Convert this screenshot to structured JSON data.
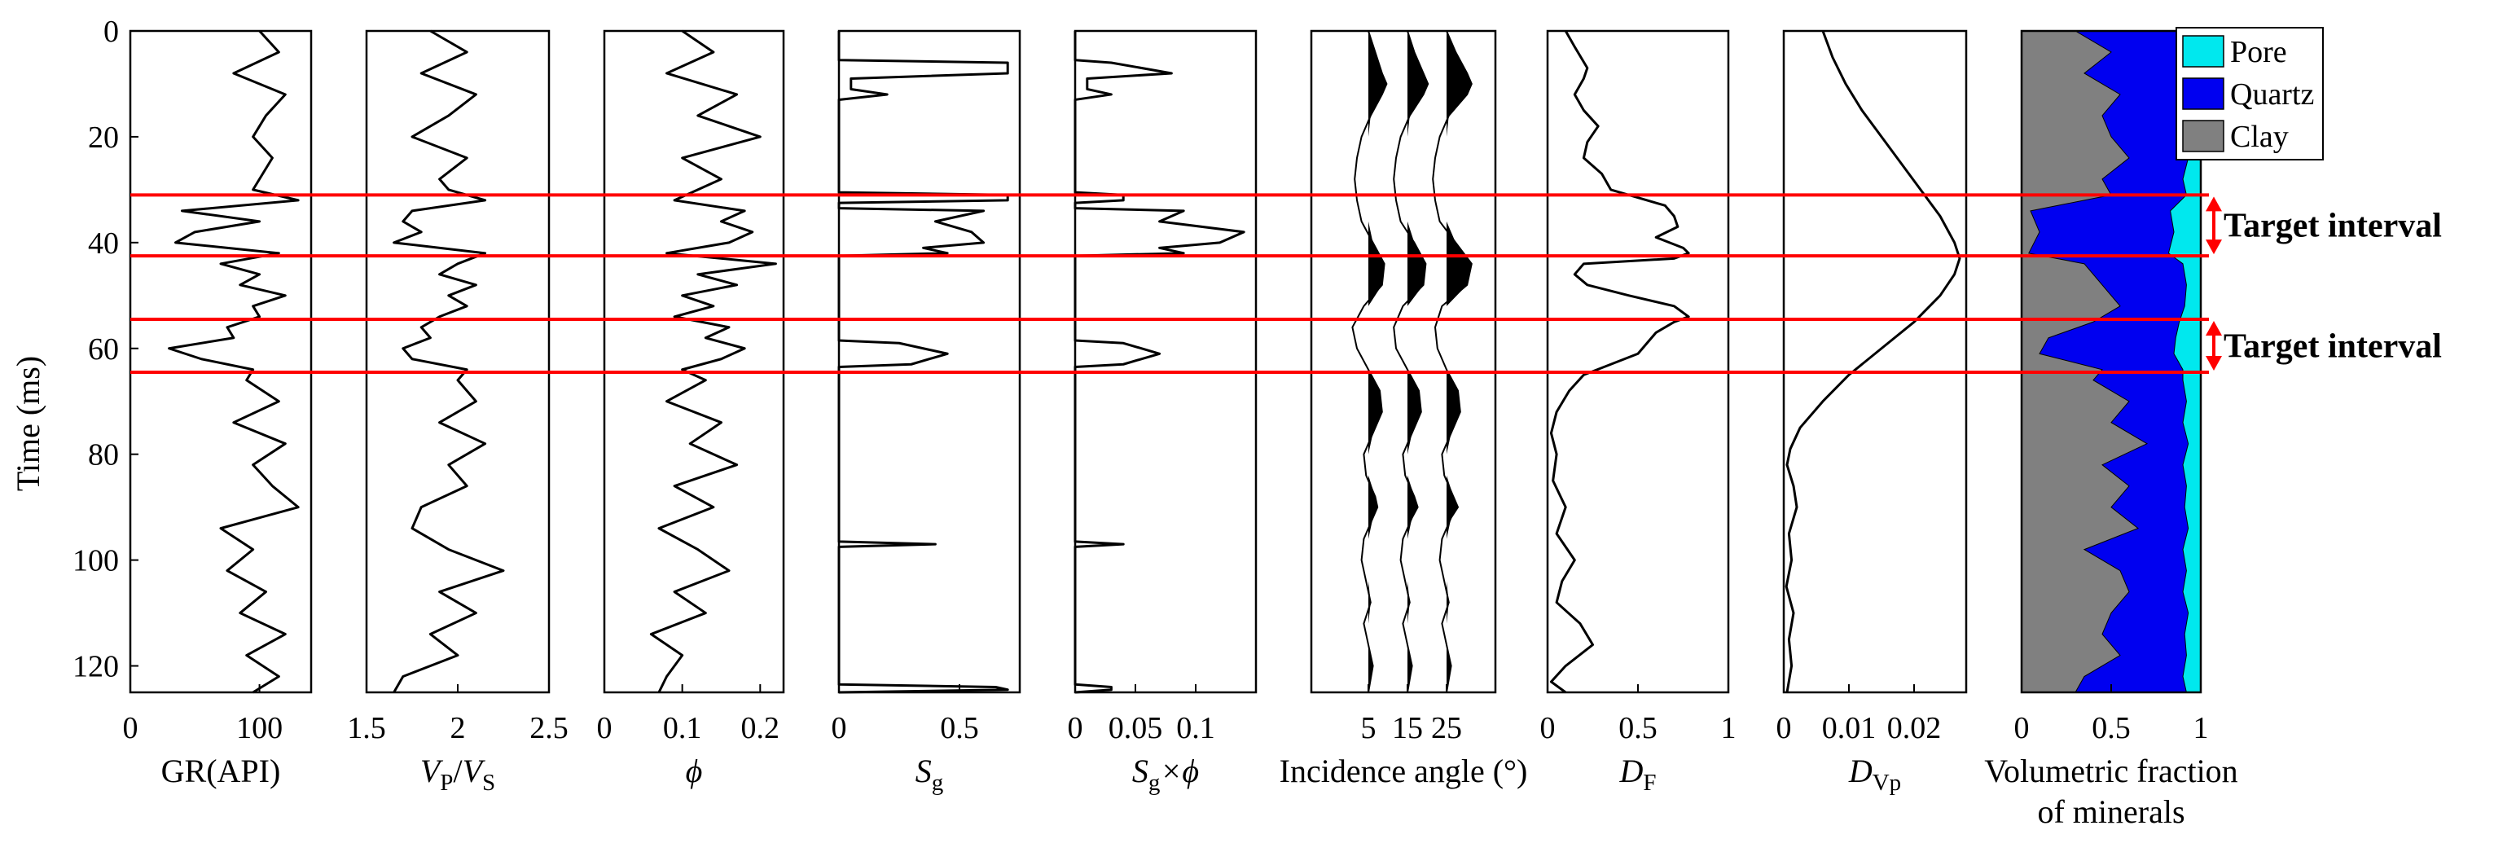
{
  "figure": {
    "y_axis": {
      "label": "Time (ms)",
      "range": [
        0,
        125
      ],
      "ticks": [
        0,
        20,
        40,
        60,
        80,
        100,
        120
      ],
      "reversed": true
    },
    "horizons_ms": [
      31,
      42.5,
      54.5,
      64.5
    ],
    "horizon_color": "#ff0000",
    "target_intervals": [
      {
        "label": "Target interval",
        "top_ms": 31,
        "base_ms": 42.5
      },
      {
        "label": "Target interval",
        "top_ms": 54.5,
        "base_ms": 64.5
      }
    ],
    "legend": [
      {
        "label": "Pore",
        "color": "#00e8ee"
      },
      {
        "label": "Quartz",
        "color": "#0000f0"
      },
      {
        "label": "Clay",
        "color": "#808080"
      }
    ]
  },
  "chart_data": [
    {
      "type": "line",
      "id": "gr",
      "xlabel": {
        "text": "GR(API)"
      },
      "xlim": [
        0,
        140
      ],
      "xticks": [
        "0",
        "100"
      ],
      "xtick_values": [
        0,
        100
      ],
      "y": [
        0,
        4,
        8,
        12,
        16,
        20,
        24,
        28,
        30,
        32,
        34,
        36,
        38,
        40,
        42,
        44,
        46,
        48,
        50,
        52,
        54,
        56,
        58,
        60,
        62,
        64,
        66,
        70,
        74,
        78,
        82,
        86,
        90,
        94,
        98,
        102,
        106,
        110,
        114,
        118,
        122,
        125
      ],
      "values": [
        100,
        115,
        80,
        120,
        105,
        95,
        110,
        100,
        95,
        130,
        40,
        100,
        50,
        35,
        115,
        70,
        100,
        85,
        120,
        95,
        100,
        75,
        80,
        30,
        55,
        95,
        90,
        115,
        80,
        120,
        95,
        110,
        130,
        70,
        95,
        75,
        105,
        85,
        120,
        90,
        115,
        95
      ]
    },
    {
      "type": "line",
      "id": "vpvs",
      "xlabel": {
        "text": "/",
        "parts": [
          "V",
          "P",
          "V",
          "S"
        ]
      },
      "xlim": [
        1.5,
        2.5
      ],
      "xticks": [
        "1.5",
        "2",
        "2.5"
      ],
      "xtick_values": [
        1.5,
        2,
        2.5
      ],
      "y": [
        0,
        4,
        8,
        12,
        16,
        20,
        24,
        28,
        30,
        32,
        34,
        36,
        38,
        40,
        42,
        44,
        46,
        48,
        50,
        52,
        54,
        56,
        58,
        60,
        62,
        64,
        66,
        70,
        74,
        78,
        82,
        86,
        90,
        94,
        98,
        102,
        106,
        110,
        114,
        118,
        122,
        125
      ],
      "values": [
        1.85,
        2.05,
        1.8,
        2.1,
        1.95,
        1.75,
        2.05,
        1.9,
        1.95,
        2.15,
        1.75,
        1.7,
        1.8,
        1.65,
        2.15,
        2.0,
        1.9,
        2.1,
        1.95,
        2.05,
        1.9,
        1.8,
        1.85,
        1.7,
        1.75,
        2.05,
        2.0,
        2.1,
        1.9,
        2.15,
        1.95,
        2.05,
        1.8,
        1.75,
        1.95,
        2.25,
        1.9,
        2.1,
        1.85,
        2.0,
        1.7,
        1.65
      ]
    },
    {
      "type": "line",
      "id": "phi",
      "xlabel": {
        "text": "ϕ"
      },
      "xlim": [
        0,
        0.23
      ],
      "xticks": [
        "0",
        "0.1",
        "0.2"
      ],
      "xtick_values": [
        0,
        0.1,
        0.2
      ],
      "y": [
        0,
        4,
        8,
        12,
        16,
        20,
        24,
        28,
        30,
        32,
        34,
        36,
        38,
        40,
        42,
        44,
        46,
        48,
        50,
        52,
        54,
        56,
        58,
        60,
        62,
        64,
        66,
        70,
        74,
        78,
        82,
        86,
        90,
        94,
        98,
        102,
        106,
        110,
        114,
        118,
        122,
        125
      ],
      "values": [
        0.1,
        0.14,
        0.08,
        0.17,
        0.12,
        0.2,
        0.1,
        0.15,
        0.12,
        0.09,
        0.18,
        0.15,
        0.19,
        0.16,
        0.08,
        0.22,
        0.12,
        0.17,
        0.1,
        0.14,
        0.09,
        0.16,
        0.13,
        0.18,
        0.15,
        0.1,
        0.13,
        0.08,
        0.15,
        0.11,
        0.17,
        0.09,
        0.14,
        0.07,
        0.12,
        0.16,
        0.09,
        0.13,
        0.06,
        0.1,
        0.08,
        0.07
      ]
    },
    {
      "type": "line",
      "id": "sg",
      "xlabel": {
        "text": "",
        "parts": [
          "S",
          "g"
        ]
      },
      "xlim": [
        0,
        0.75
      ],
      "xticks": [
        "0",
        "0.5"
      ],
      "xtick_values": [
        0,
        0.5
      ],
      "y": [
        0,
        5.5,
        6,
        8,
        9,
        11,
        12,
        13,
        30.5,
        31,
        32,
        32.5,
        33.5,
        34,
        36,
        38,
        40,
        41,
        42,
        42.5,
        58.5,
        59,
        61,
        63,
        63.5,
        96.5,
        97,
        97.5,
        123.5,
        124,
        124.5,
        125
      ],
      "values": [
        0,
        0,
        0.7,
        0.7,
        0.05,
        0.05,
        0.2,
        0,
        0,
        0.7,
        0.7,
        0,
        0,
        0.6,
        0.4,
        0.55,
        0.6,
        0.35,
        0.45,
        0,
        0,
        0.25,
        0.45,
        0.3,
        0,
        0,
        0.4,
        0,
        0,
        0.65,
        0.7,
        0
      ]
    },
    {
      "type": "line",
      "id": "sgphi",
      "xlabel": {
        "text": "×ϕ",
        "parts": [
          "S",
          "g"
        ]
      },
      "xlim": [
        0,
        0.15
      ],
      "xticks": [
        "0",
        "0.05",
        "0.1"
      ],
      "xtick_values": [
        0,
        0.05,
        0.1
      ],
      "y": [
        0,
        5.5,
        6,
        8,
        9,
        11,
        12,
        13,
        30.5,
        31,
        32,
        32.5,
        33.5,
        34,
        36,
        38,
        40,
        41,
        42,
        42.5,
        58.5,
        59,
        61,
        63,
        63.5,
        96.5,
        97,
        97.5,
        123.5,
        124,
        124.5,
        125
      ],
      "values": [
        0,
        0,
        0.03,
        0.08,
        0.01,
        0.01,
        0.03,
        0,
        0,
        0.04,
        0.04,
        0,
        0,
        0.09,
        0.07,
        0.14,
        0.12,
        0.07,
        0.09,
        0,
        0,
        0.04,
        0.07,
        0.04,
        0,
        0,
        0.04,
        0,
        0,
        0.03,
        0.03,
        0
      ]
    },
    {
      "type": "area",
      "id": "seismic",
      "xlabel": {
        "text": "Incidence angle (°)"
      },
      "xticks": [
        "5",
        "15",
        "25"
      ],
      "xtick_values": [
        5,
        15,
        25
      ],
      "y": [
        0,
        4,
        8,
        10,
        12,
        16,
        20,
        24,
        28,
        32,
        36,
        40,
        44,
        48,
        52,
        56,
        60,
        64,
        68,
        72,
        76,
        80,
        84,
        88,
        90,
        92,
        96,
        100,
        104,
        108,
        112,
        116,
        120,
        125
      ],
      "traces": [
        {
          "angle": 5,
          "amplitude": [
            0,
            0.3,
            0.6,
            0.8,
            0.6,
            0.1,
            -0.3,
            -0.5,
            -0.6,
            -0.5,
            -0.3,
            0.2,
            0.7,
            0.6,
            -0.2,
            -0.7,
            -0.5,
            0,
            0.5,
            0.6,
            0.2,
            -0.2,
            -0.1,
            0.3,
            0.4,
            0.2,
            -0.2,
            -0.3,
            -0.1,
            0.1,
            -0.2,
            0,
            0.2,
            0
          ]
        },
        {
          "angle": 15,
          "amplitude": [
            0,
            0.3,
            0.7,
            0.9,
            0.7,
            0.1,
            -0.3,
            -0.5,
            -0.6,
            -0.5,
            -0.3,
            0.3,
            0.8,
            0.7,
            -0.2,
            -0.6,
            -0.5,
            0,
            0.5,
            0.6,
            0.2,
            -0.2,
            -0.1,
            0.3,
            0.45,
            0.2,
            -0.2,
            -0.3,
            -0.1,
            0.1,
            -0.2,
            0,
            0.2,
            0
          ]
        },
        {
          "angle": 25,
          "amplitude": [
            0,
            0.4,
            0.9,
            1.1,
            0.9,
            0.1,
            -0.3,
            -0.5,
            -0.6,
            -0.5,
            -0.3,
            0.4,
            1.1,
            0.9,
            -0.2,
            -0.5,
            -0.4,
            0,
            0.5,
            0.6,
            0.2,
            -0.2,
            -0.1,
            0.3,
            0.5,
            0.2,
            -0.2,
            -0.3,
            -0.1,
            0.1,
            -0.2,
            0,
            0.2,
            0
          ]
        }
      ]
    },
    {
      "type": "line",
      "id": "df",
      "xlabel": {
        "text": "",
        "parts": [
          "D",
          "F"
        ]
      },
      "xlim": [
        0,
        1
      ],
      "xticks": [
        "0",
        "0.5",
        "1"
      ],
      "xtick_values": [
        0,
        0.5,
        1
      ],
      "y": [
        0,
        3,
        7,
        9,
        12,
        15,
        18,
        21,
        24,
        27,
        30,
        33,
        35,
        37,
        39,
        41,
        42,
        43,
        44,
        46,
        48,
        50,
        52,
        54,
        55,
        57,
        59,
        61,
        63,
        65,
        68,
        72,
        76,
        80,
        85,
        90,
        95,
        100,
        104,
        108,
        112,
        116,
        120,
        123,
        125
      ],
      "values": [
        0.1,
        0.15,
        0.22,
        0.2,
        0.15,
        0.2,
        0.28,
        0.22,
        0.2,
        0.3,
        0.35,
        0.65,
        0.7,
        0.72,
        0.6,
        0.75,
        0.78,
        0.7,
        0.2,
        0.15,
        0.22,
        0.45,
        0.7,
        0.78,
        0.7,
        0.6,
        0.55,
        0.5,
        0.35,
        0.2,
        0.12,
        0.05,
        0.02,
        0.05,
        0.03,
        0.1,
        0.05,
        0.15,
        0.08,
        0.05,
        0.18,
        0.25,
        0.1,
        0.02,
        0.1
      ]
    },
    {
      "type": "line",
      "id": "dvp",
      "xlabel": {
        "text": "",
        "parts": [
          "D",
          "Vp"
        ]
      },
      "xlim": [
        0,
        0.028
      ],
      "xticks": [
        "0",
        "0.01",
        "0.02"
      ],
      "xtick_values": [
        0,
        0.01,
        0.02
      ],
      "y": [
        0,
        5,
        10,
        15,
        20,
        25,
        30,
        35,
        40,
        43,
        46,
        50,
        55,
        60,
        65,
        70,
        75,
        79,
        82,
        86,
        90,
        95,
        100,
        105,
        110,
        115,
        120,
        125
      ],
      "values": [
        0.006,
        0.0075,
        0.0095,
        0.012,
        0.015,
        0.018,
        0.021,
        0.024,
        0.0262,
        0.027,
        0.0262,
        0.024,
        0.02,
        0.015,
        0.01,
        0.006,
        0.0025,
        0.001,
        0.0005,
        0.0015,
        0.002,
        0.0008,
        0.0012,
        0.0004,
        0.0015,
        0.0008,
        0.0012,
        0.0005
      ]
    },
    {
      "type": "area",
      "id": "minerals",
      "stacked": true,
      "xlabel": {
        "text": "Volumetric fraction",
        "text2": "of minerals"
      },
      "xlim": [
        0,
        1
      ],
      "xticks": [
        "0",
        "0.5",
        "1"
      ],
      "xtick_values": [
        0,
        0.5,
        1
      ],
      "y": [
        0,
        4,
        8,
        12,
        16,
        20,
        24,
        28,
        31,
        34,
        38,
        42,
        44,
        48,
        52,
        55,
        58,
        61,
        64,
        66,
        70,
        74,
        78,
        82,
        86,
        90,
        94,
        98,
        102,
        106,
        110,
        114,
        118,
        122,
        125
      ],
      "clay_top": [
        0.3,
        0.5,
        0.35,
        0.55,
        0.45,
        0.5,
        0.6,
        0.45,
        0.5,
        0.05,
        0.1,
        0.04,
        0.35,
        0.45,
        0.55,
        0.4,
        0.15,
        0.1,
        0.45,
        0.4,
        0.6,
        0.5,
        0.7,
        0.45,
        0.6,
        0.5,
        0.65,
        0.35,
        0.55,
        0.6,
        0.5,
        0.45,
        0.55,
        0.35,
        0.3
      ],
      "quartz_top": [
        0.9,
        0.92,
        0.9,
        0.93,
        0.9,
        0.92,
        0.93,
        0.9,
        0.92,
        0.83,
        0.85,
        0.82,
        0.9,
        0.92,
        0.91,
        0.88,
        0.86,
        0.85,
        0.9,
        0.9,
        0.92,
        0.9,
        0.93,
        0.9,
        0.92,
        0.91,
        0.93,
        0.9,
        0.92,
        0.9,
        0.93,
        0.91,
        0.92,
        0.9,
        0.92
      ]
    }
  ]
}
